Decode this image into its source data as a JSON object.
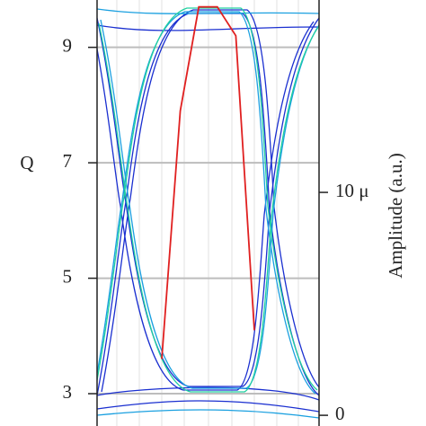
{
  "chart_data": {
    "type": "line",
    "y_label": "Q",
    "y2_label": "Amplitude (a.u.)",
    "categories": [
      null,
      null,
      null,
      null,
      null,
      null,
      null,
      null,
      null,
      null,
      null,
      null
    ],
    "values": [
      null,
      null,
      null,
      3.6,
      7.9,
      9.7,
      9.7,
      9.2,
      4.1,
      null,
      null,
      null
    ],
    "color": "#e02020",
    "ylim": [
      2.44,
      9.82
    ],
    "yticks": [
      3,
      5,
      7,
      9
    ],
    "y2lim": [
      -4.8e-07,
      1.863e-05
    ],
    "y2ticks": [
      0,
      {
        "value": 1e-05,
        "label": "10 μ"
      }
    ],
    "grid": true
  }
}
